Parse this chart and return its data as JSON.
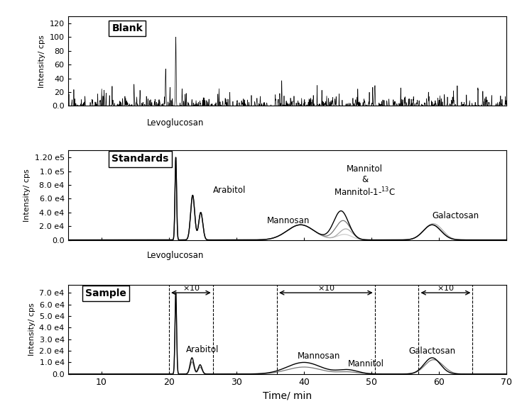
{
  "xlim": [
    5,
    70
  ],
  "xticks": [
    10,
    20,
    30,
    40,
    50,
    60,
    70
  ],
  "xlabel": "Time/ min",
  "panel1_label": "Blank",
  "panel1_ylabel": "Intensity/ cps",
  "panel1_ylim": [
    0,
    130
  ],
  "panel1_yticks": [
    0.0,
    20,
    40,
    60,
    80,
    100,
    120
  ],
  "panel1_ytick_labels": [
    "0.0",
    "20",
    "40",
    "60",
    "80",
    "100",
    "120"
  ],
  "panel2_label": "Standards",
  "panel2_ylabel": "Intensity/ cps",
  "panel2_ylim": [
    0,
    130000
  ],
  "panel2_yticks": [
    0.0,
    20000,
    40000,
    60000,
    80000,
    100000,
    120000
  ],
  "panel2_ytick_labels": [
    "0.0",
    "2.0 e4",
    "4.0 e4",
    "6.0 e4",
    "8.0 e4",
    "1.0 e5",
    "1.20 e5"
  ],
  "panel3_label": "Sample",
  "panel3_ylabel": "Intensity/ cps",
  "panel3_ylim": [
    0,
    77000
  ],
  "panel3_yticks": [
    0.0,
    10000,
    20000,
    30000,
    40000,
    50000,
    60000,
    70000
  ],
  "panel3_ytick_labels": [
    "0.0",
    "1.0 e4",
    "2.0 e4",
    "3.0 e4",
    "4.0 e4",
    "5.0 e4",
    "6.0 e4",
    "7.0 e4"
  ],
  "background_color": "#ffffff",
  "line_color": "#000000",
  "gray_color": "#777777",
  "light_gray": "#aaaaaa",
  "lighter_gray": "#cccccc"
}
